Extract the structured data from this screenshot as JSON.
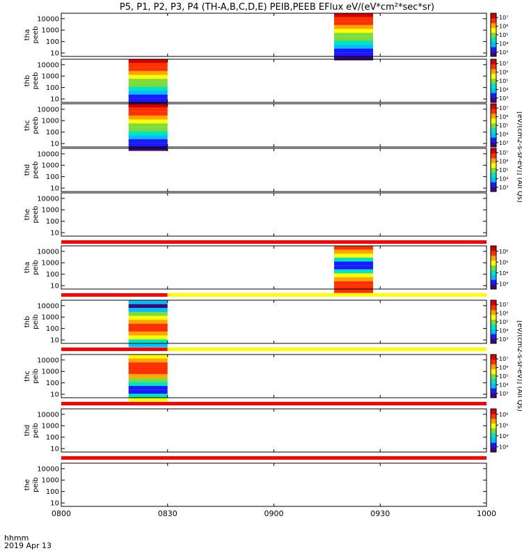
{
  "title": "P5, P1, P2, P3, P4 (TH-A,B,C,D,E) PEIB,PEEB EFlux eV/(eV*cm²*sec*sr)",
  "footer": {
    "time_label": "hhmm",
    "date_label": "2019 Apr 13"
  },
  "colorbar_unit_labels": {
    "electron": "[eV/(cm2-s-sr-eV)] (All Qs)",
    "ion": "[eV/(cm2-s-sr-eV)] (All Qs)"
  },
  "chart_data": {
    "type": "heatmap",
    "x_axis": {
      "range": [
        "0800",
        "1000"
      ],
      "ticks": [
        "0800",
        "0830",
        "0900",
        "0930",
        "1000"
      ]
    },
    "y_axis": {
      "scale": "log",
      "range": [
        5,
        30000
      ],
      "ticks": [
        "10",
        "100",
        "1000",
        "10000"
      ],
      "unit": "eV"
    },
    "panels": [
      {
        "id": "tha-peeb",
        "label1": "tha",
        "label2": "peeb",
        "data_interval": [
          "0917",
          "0928"
        ],
        "colorbar": {
          "ticks": [
            "10³",
            "10⁴",
            "10⁵",
            "10⁶",
            "10⁷"
          ]
        },
        "mode_bar": ""
      },
      {
        "id": "thb-peeb",
        "label1": "thb",
        "label2": "peeb",
        "data_interval": [
          "0819",
          "0830"
        ],
        "colorbar": {
          "ticks": [
            "10³",
            "10⁴",
            "10⁵",
            "10⁶",
            "10⁷"
          ]
        },
        "mode_bar": ""
      },
      {
        "id": "thc-peeb",
        "label1": "thc",
        "label2": "peeb",
        "data_interval": [
          "0819",
          "0830"
        ],
        "colorbar": {
          "ticks": [
            "10³",
            "10⁴",
            "10⁵",
            "10⁶",
            "10⁷"
          ]
        },
        "mode_bar": ""
      },
      {
        "id": "thd-peeb",
        "label1": "thd",
        "label2": "peeb",
        "data_interval": null,
        "colorbar": {
          "ticks": [
            "10³",
            "10⁴",
            "10⁵",
            "10⁶",
            "10⁷"
          ]
        },
        "mode_bar": ""
      },
      {
        "id": "the-peeb",
        "label1": "the",
        "label2": "peeb",
        "data_interval": null,
        "colorbar": null,
        "mode_bar": "red"
      },
      {
        "id": "tha-peib",
        "label1": "tha",
        "label2": "peib",
        "data_interval": [
          "0917",
          "0928"
        ],
        "colorbar": {
          "ticks": [
            "10³",
            "10⁴",
            "10⁵",
            "10⁶"
          ]
        },
        "mode_bar": "red-yellow"
      },
      {
        "id": "thb-peib",
        "label1": "thb",
        "label2": "peib",
        "data_interval": [
          "0819",
          "0830"
        ],
        "colorbar": {
          "ticks": [
            "10³",
            "10⁴",
            "10⁵",
            "10⁶",
            "10⁷"
          ]
        },
        "mode_bar": "red-yellow"
      },
      {
        "id": "thc-peib",
        "label1": "thc",
        "label2": "peib",
        "data_interval": [
          "0819",
          "0830"
        ],
        "colorbar": {
          "ticks": [
            "10³",
            "10⁴",
            "10⁵",
            "10⁶",
            "10⁷"
          ]
        },
        "mode_bar": "red"
      },
      {
        "id": "thd-peib",
        "label1": "thd",
        "label2": "peib",
        "data_interval": null,
        "colorbar": {
          "ticks": [
            "10³",
            "10⁴",
            "10⁵",
            "10⁶"
          ]
        },
        "mode_bar": "red"
      },
      {
        "id": "the-peib",
        "label1": "the",
        "label2": "peib",
        "data_interval": null,
        "colorbar": null,
        "mode_bar": ""
      }
    ],
    "colormap": [
      "#3b0a78",
      "#1a1aff",
      "#00bfff",
      "#00e5c0",
      "#7ddc3a",
      "#ffff00",
      "#ffa500",
      "#ff3000",
      "#d40000"
    ]
  }
}
